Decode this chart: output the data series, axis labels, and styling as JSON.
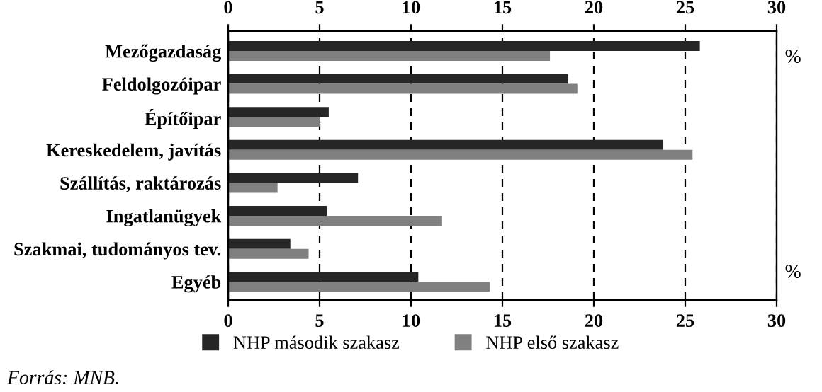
{
  "chart_data": {
    "type": "bar",
    "orientation": "horizontal",
    "categories": [
      "Mezőgazdaság",
      "Feldolgozóipar",
      "Építőipar",
      "Kereskedelem, javítás",
      "Szállítás, raktározás",
      "Ingatlanügyek",
      "Szakmai, tudományos tev.",
      "Egyéb"
    ],
    "series": [
      {
        "name": "NHP második szakasz",
        "color": "#262626",
        "values": [
          25.8,
          18.6,
          5.5,
          23.8,
          7.1,
          5.4,
          3.4,
          10.4
        ]
      },
      {
        "name": "NHP első szakasz",
        "color": "#808080",
        "values": [
          17.6,
          19.1,
          5.0,
          25.4,
          2.7,
          11.7,
          4.4,
          14.3
        ]
      }
    ],
    "xlim": [
      0,
      30
    ],
    "xticks": [
      0,
      5,
      10,
      15,
      20,
      25,
      30
    ],
    "x2lim": [
      0,
      30
    ],
    "x2ticks": [
      0,
      5,
      10,
      15,
      20,
      25,
      30
    ],
    "xlabel": "%",
    "x2label": "%",
    "grid": "x",
    "legend": "bottom",
    "annotations": [
      "Forrás: MNB."
    ]
  }
}
